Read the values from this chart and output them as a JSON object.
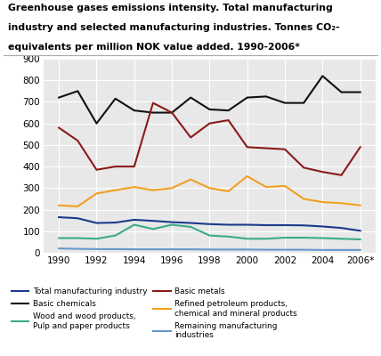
{
  "years": [
    1990,
    1991,
    1992,
    1993,
    1994,
    1995,
    1996,
    1997,
    1998,
    1999,
    2000,
    2001,
    2002,
    2003,
    2004,
    2005,
    2006
  ],
  "title_line1": "Greenhouse gases emissions intensity. Total manufacturing",
  "title_line2": "industry and selected manufacturing industries. Tonnes CO₂-",
  "title_line3": "equivalents per million NOK value added. 1990-2006*",
  "series": {
    "Total manufacturing industry": {
      "values": [
        165,
        160,
        138,
        140,
        153,
        148,
        142,
        138,
        133,
        130,
        130,
        128,
        128,
        127,
        122,
        115,
        102
      ],
      "color": "#1a3a8c",
      "linewidth": 1.5
    },
    "Wood and wood products,\nPulp and paper products": {
      "values": [
        68,
        68,
        65,
        80,
        130,
        110,
        130,
        120,
        80,
        75,
        65,
        65,
        70,
        70,
        68,
        65,
        62
      ],
      "color": "#3aab8c",
      "linewidth": 1.5
    },
    "Refined petroleum products,\nchemical and mineral products": {
      "values": [
        220,
        215,
        275,
        290,
        305,
        290,
        300,
        340,
        300,
        285,
        355,
        305,
        310,
        250,
        235,
        230,
        220
      ],
      "color": "#f0a020",
      "linewidth": 1.5
    },
    "Basic chemicals": {
      "values": [
        720,
        750,
        600,
        715,
        660,
        650,
        650,
        720,
        665,
        660,
        720,
        725,
        695,
        695,
        820,
        745,
        745
      ],
      "color": "#111111",
      "linewidth": 1.5
    },
    "Basic metals": {
      "values": [
        580,
        520,
        385,
        400,
        400,
        695,
        650,
        535,
        600,
        615,
        490,
        485,
        480,
        395,
        375,
        360,
        490
      ],
      "color": "#8b1a1a",
      "linewidth": 1.5
    },
    "Remaining manufacturing\nindustries": {
      "values": [
        20,
        18,
        17,
        17,
        16,
        16,
        16,
        16,
        15,
        15,
        15,
        14,
        14,
        14,
        13,
        13,
        13
      ],
      "color": "#6699cc",
      "linewidth": 1.5
    }
  },
  "ylim": [
    0,
    900
  ],
  "yticks": [
    0,
    100,
    200,
    300,
    400,
    500,
    600,
    700,
    800,
    900
  ],
  "xticks": [
    1990,
    1992,
    1994,
    1996,
    1998,
    2000,
    2002,
    2004,
    2006
  ],
  "xticklabels": [
    "1990",
    "1992",
    "1994",
    "1996",
    "1998",
    "2000",
    "2002",
    "2004",
    "2006*"
  ],
  "plot_bg": "#e8e8e8",
  "fig_bg": "#ffffff",
  "grid_color": "#ffffff",
  "legend_order": [
    "Total manufacturing industry",
    "Basic chemicals",
    "Wood and wood products,\nPulp and paper products",
    "Basic metals",
    "Refined petroleum products,\nchemical and mineral products",
    "Remaining manufacturing\nindustries"
  ]
}
